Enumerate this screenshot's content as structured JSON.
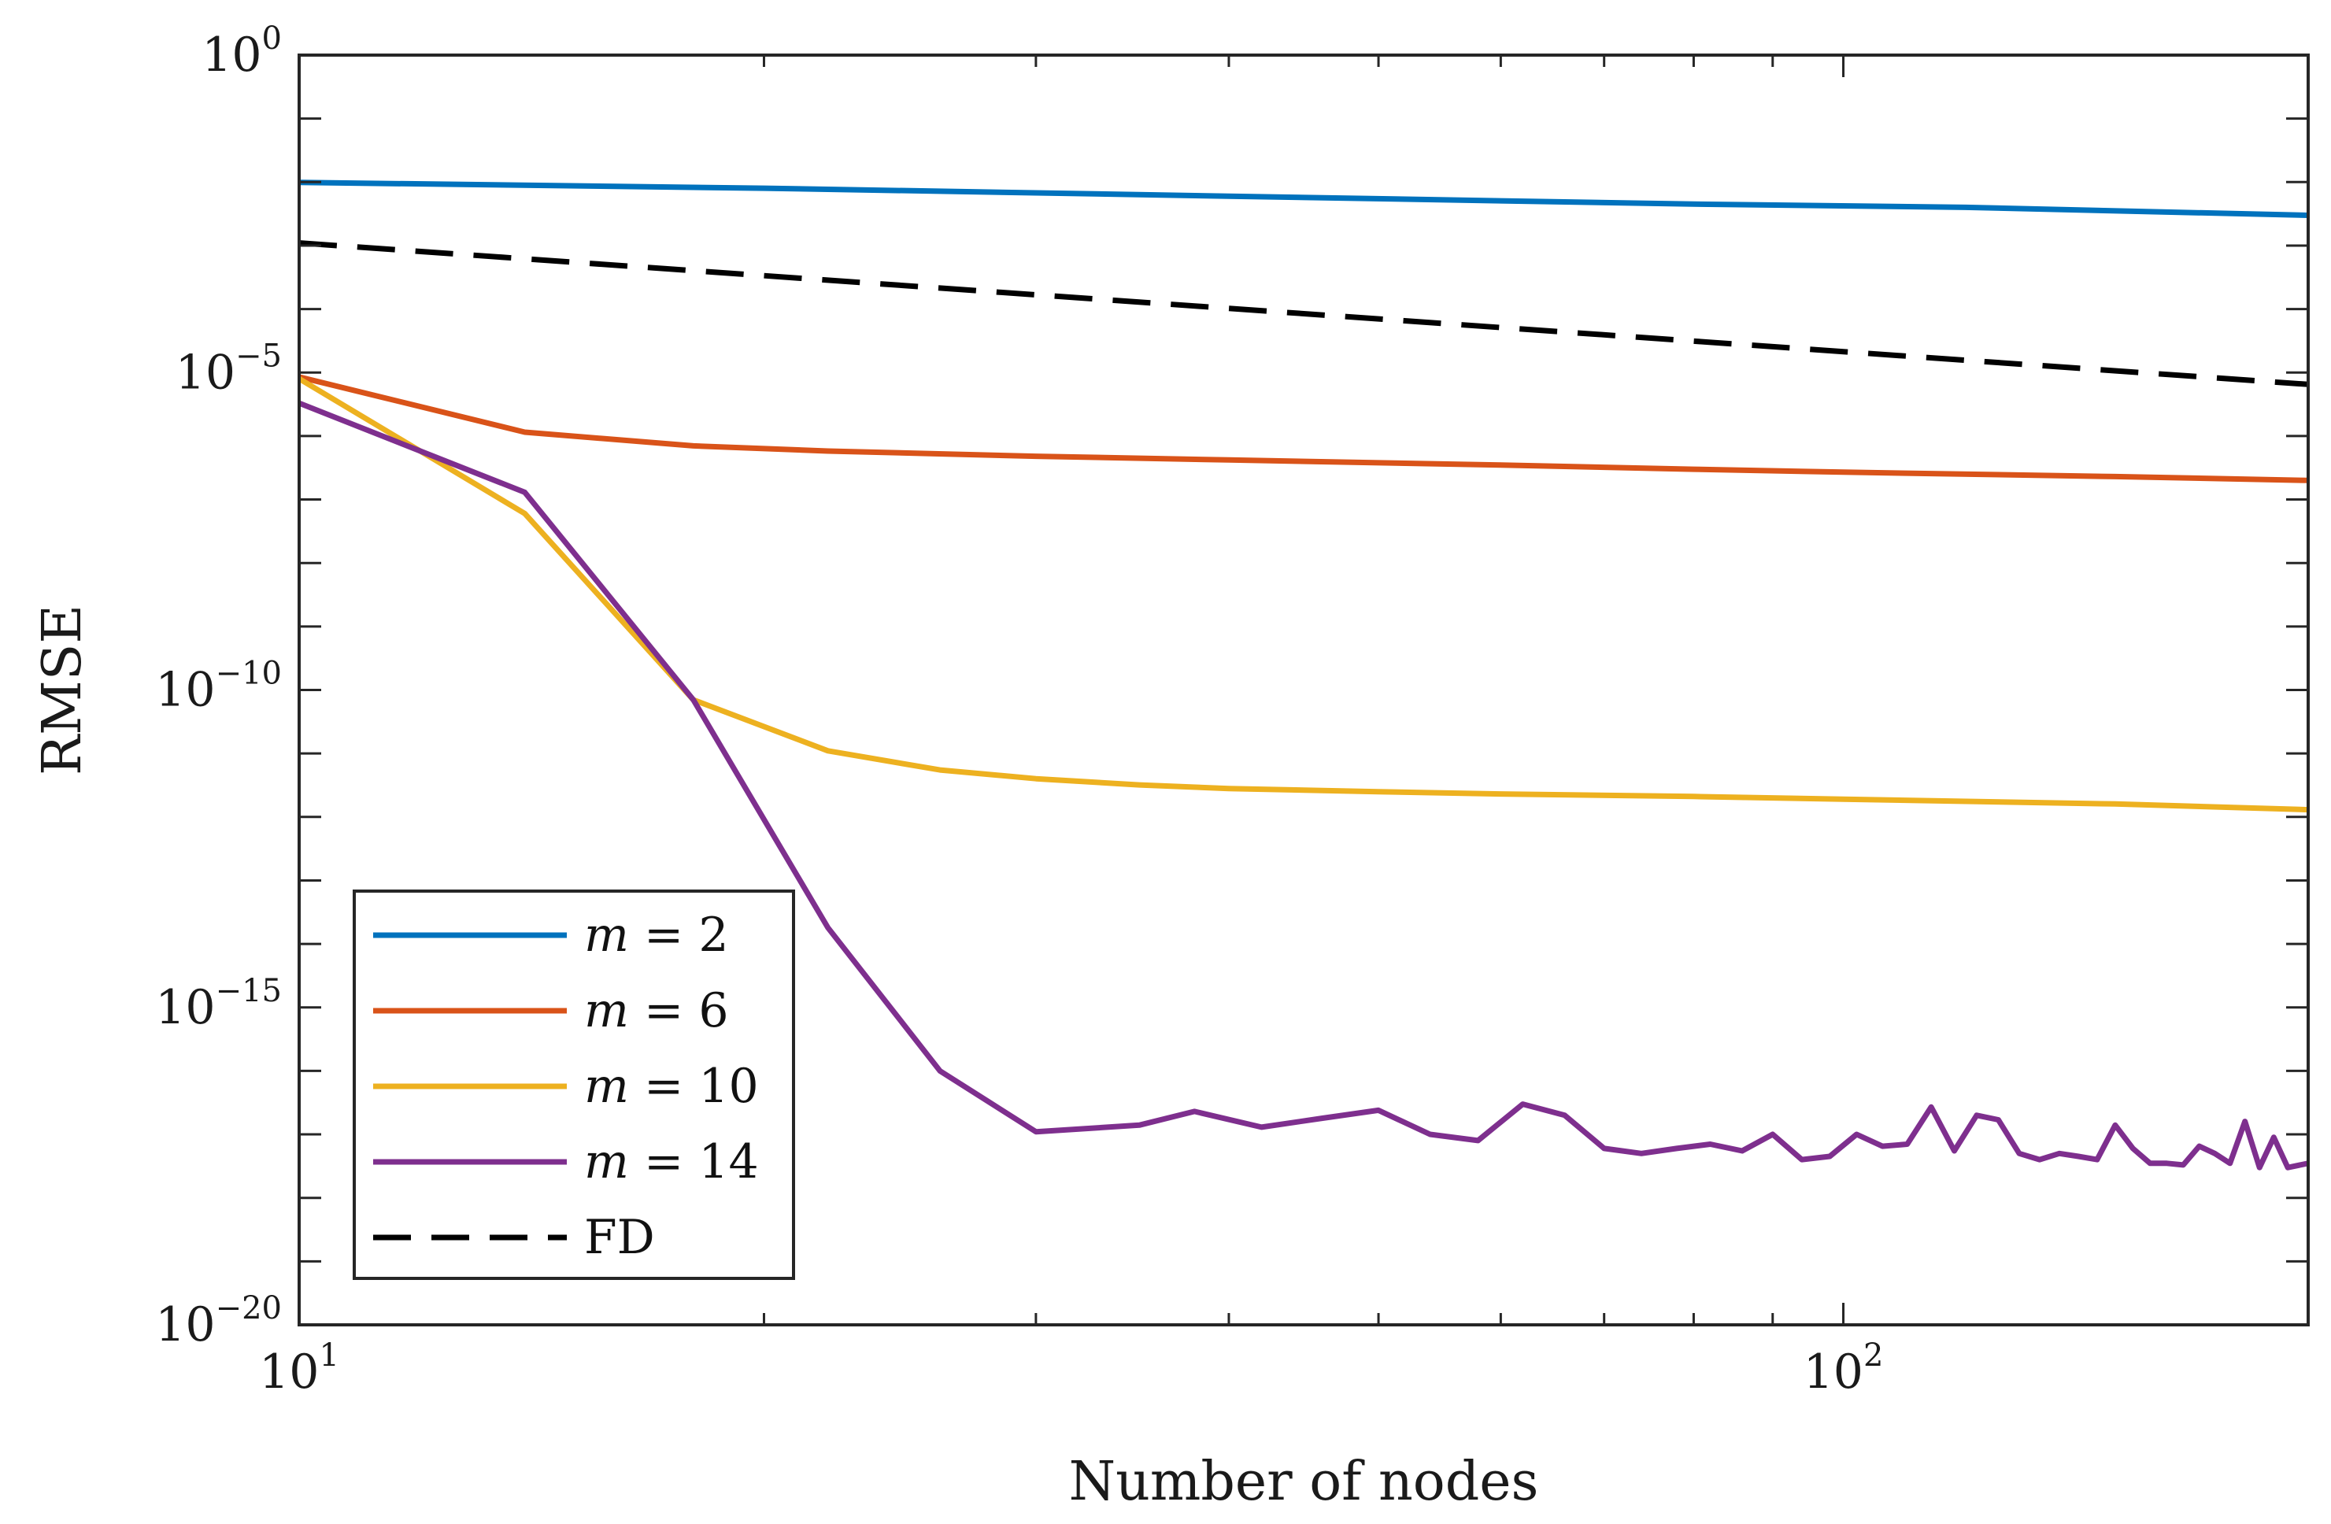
{
  "chart_data": {
    "type": "line",
    "title": "",
    "xlabel": "Number of nodes",
    "ylabel": "RMSE",
    "xscale": "log",
    "yscale": "log",
    "xlim": [
      10,
      200
    ],
    "ylim": [
      1e-20,
      1
    ],
    "x_ticks": [
      {
        "value": 10,
        "base": "10",
        "exp": "1"
      },
      {
        "value": 100,
        "base": "10",
        "exp": "2"
      }
    ],
    "y_ticks": [
      {
        "value": 1,
        "base": "10",
        "exp": "0"
      },
      {
        "value": 1e-05,
        "base": "10",
        "exp": "−5"
      },
      {
        "value": 1e-10,
        "base": "10",
        "exp": "−10"
      },
      {
        "value": 1e-15,
        "base": "10",
        "exp": "−15"
      },
      {
        "value": 1e-20,
        "base": "10",
        "exp": "−20"
      }
    ],
    "legend_position": "bottom-left",
    "series": [
      {
        "name": "m = 2",
        "var": "m",
        "eq": " = 2",
        "color": "#0072BD",
        "dash": "solid",
        "x": [
          10,
          20,
          40,
          80,
          120,
          200
        ],
        "y": [
          0.0099,
          0.008,
          0.006,
          0.0045,
          0.004,
          0.003
        ]
      },
      {
        "name": "m = 6",
        "var": "m",
        "eq": " = 6",
        "color": "#D95319",
        "dash": "solid",
        "x": [
          10,
          14,
          18,
          22,
          30,
          40,
          60,
          80,
          100,
          150,
          200
        ],
        "y": [
          8.5e-06,
          1.15e-06,
          7e-07,
          5.8e-07,
          4.8e-07,
          4.2e-07,
          3.5e-07,
          3e-07,
          2.7e-07,
          2.3e-07,
          2e-07
        ]
      },
      {
        "name": "m = 10",
        "var": "m",
        "eq": " = 10",
        "color": "#EDB120",
        "dash": "solid",
        "x": [
          10,
          14,
          18,
          22,
          26,
          30,
          35,
          40,
          50,
          60,
          80,
          100,
          150,
          200
        ],
        "y": [
          8e-06,
          6e-08,
          7e-11,
          1.1e-11,
          5.5e-12,
          4e-12,
          3.2e-12,
          2.8e-12,
          2.5e-12,
          2.3e-12,
          2.1e-12,
          1.9e-12,
          1.6e-12,
          1.3e-12
        ]
      },
      {
        "name": "m = 14",
        "var": "m",
        "eq": " = 14",
        "color": "#7E2F8E",
        "dash": "solid",
        "x": [
          10,
          14,
          18,
          22,
          26,
          30,
          35,
          38,
          42,
          46,
          50,
          54,
          58,
          62,
          66,
          70,
          74,
          78,
          82,
          86,
          90,
          94,
          98,
          102,
          106,
          110,
          114,
          118,
          122,
          126,
          130,
          134,
          138,
          142,
          146,
          150,
          154,
          158,
          162,
          166,
          170,
          174,
          178,
          182,
          186,
          190,
          194,
          200
        ],
        "y": [
          3.3e-06,
          1.3e-07,
          7e-11,
          1.8e-14,
          1e-16,
          1.1e-17,
          1.4e-17,
          2.3e-17,
          1.3e-17,
          1.8e-17,
          2.4e-17,
          1e-17,
          8e-18,
          3e-17,
          2e-17,
          6e-18,
          5e-18,
          6e-18,
          7e-18,
          5.5e-18,
          1e-17,
          4e-18,
          4.5e-18,
          1e-17,
          6.5e-18,
          7e-18,
          2.7e-17,
          5.5e-18,
          2e-17,
          1.7e-17,
          5e-18,
          4e-18,
          5e-18,
          4.5e-18,
          4e-18,
          1.4e-17,
          6e-18,
          3.5e-18,
          3.5e-18,
          3.3e-18,
          6.5e-18,
          5e-18,
          3.5e-18,
          1.6e-17,
          3e-18,
          9e-18,
          3e-18,
          3.5e-18
        ]
      },
      {
        "name": "FD",
        "var": "",
        "eq": "FD",
        "color": "#000000",
        "dash": "dashed",
        "x": [
          10,
          200
        ],
        "y": [
          0.0011,
          6.5e-06
        ]
      }
    ]
  }
}
